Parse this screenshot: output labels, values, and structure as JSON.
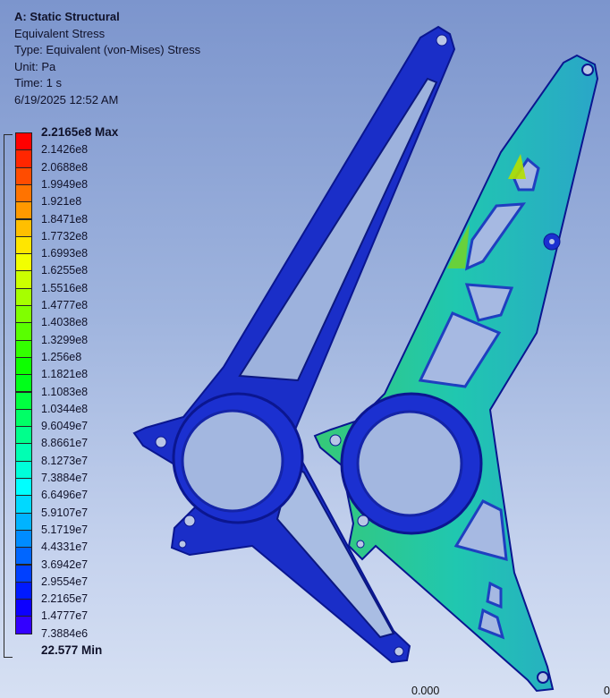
{
  "analysis": {
    "title": "A: Static Structural",
    "result": "Equivalent Stress",
    "type": "Type: Equivalent (von-Mises) Stress",
    "unit": "Unit: Pa",
    "time": "Time: 1 s",
    "date": "6/19/2025 12:52 AM"
  },
  "legend": {
    "max_label": "2.2165e8 Max",
    "min_label": "22.577 Min",
    "values": [
      "2.1426e8",
      "2.0688e8",
      "1.9949e8",
      "1.921e8",
      "1.8471e8",
      "1.7732e8",
      "1.6993e8",
      "1.6255e8",
      "1.5516e8",
      "1.4777e8",
      "1.4038e8",
      "1.3299e8",
      "1.256e8",
      "1.1821e8",
      "1.1083e8",
      "1.0344e8",
      "9.6049e7",
      "8.8661e7",
      "8.1273e7",
      "7.3884e7",
      "6.6496e7",
      "5.9107e7",
      "5.1719e7",
      "4.4331e7",
      "3.6942e7",
      "2.9554e7",
      "2.2165e7",
      "1.4777e7",
      "7.3884e6"
    ],
    "colors": [
      "#ff0000",
      "#ff2600",
      "#ff4c00",
      "#ff7300",
      "#ff9900",
      "#ffbf00",
      "#ffe600",
      "#f2ff00",
      "#ccff00",
      "#a6ff00",
      "#80ff00",
      "#59ff00",
      "#33ff00",
      "#0dff00",
      "#00ff1a",
      "#00ff40",
      "#00ff66",
      "#00ff8c",
      "#00ffb3",
      "#00ffd9",
      "#00ffff",
      "#00d9ff",
      "#00b3ff",
      "#008cff",
      "#0066ff",
      "#0040ff",
      "#001aff",
      "#0d00ff",
      "#3300ff"
    ]
  },
  "scale": {
    "left": "0.000",
    "right": "0"
  }
}
